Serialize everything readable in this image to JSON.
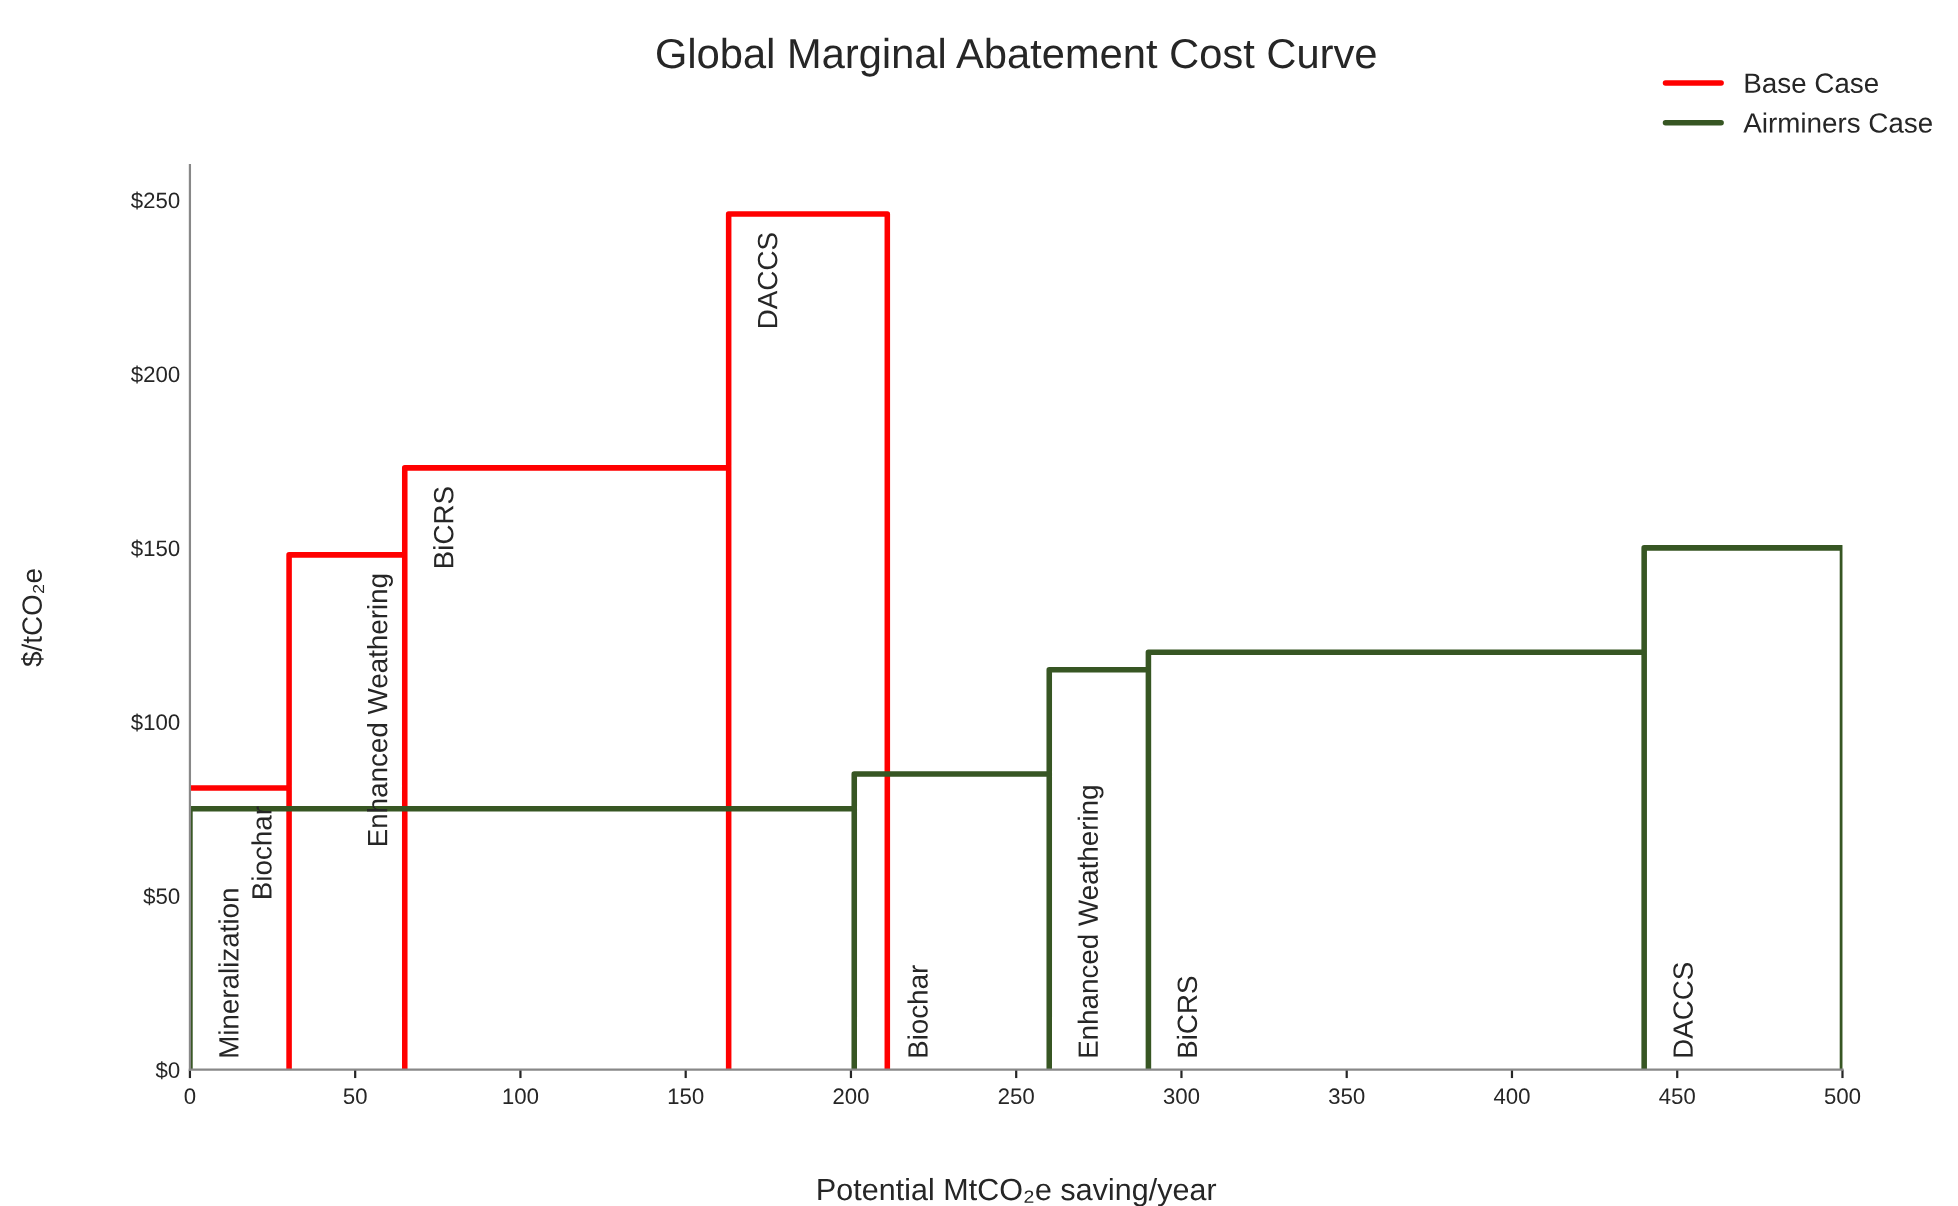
{
  "chart_data": {
    "type": "line",
    "title": "Global Marginal Abatement Cost Curve",
    "xlabel": "Potential MtCO₂e saving/year",
    "ylabel": "$/tCO₂e",
    "series": [
      {
        "name": "Base Case",
        "color": "#ff0000",
        "x": [
          0,
          30,
          30,
          30,
          65,
          65,
          65,
          163,
          163,
          163,
          211,
          211
        ],
        "values": [
          81,
          81,
          0,
          148,
          148,
          0,
          173,
          173,
          0,
          246,
          246,
          0
        ]
      },
      {
        "name": "Airminers Case",
        "color": "#375623",
        "x": [
          0,
          0,
          201,
          201,
          201,
          260,
          260,
          260,
          290,
          290,
          290,
          440,
          440,
          440,
          500,
          500
        ],
        "values": [
          0,
          75,
          75,
          0,
          85,
          85,
          0,
          115,
          115,
          0,
          120,
          120,
          0,
          150,
          150,
          0
        ]
      }
    ],
    "annotations": [
      "Biochar",
      "Enhanced Weathering",
      "BiCRS",
      "DACCS",
      "Mineralization",
      "Biochar",
      "Enhanced Weathering",
      "BiCRS",
      "DACCS"
    ],
    "xlim": [
      0,
      500
    ],
    "xticks": [
      0,
      50,
      100,
      150,
      200,
      250,
      300,
      350,
      400,
      450,
      500
    ],
    "ylim": [
      0,
      260
    ],
    "yticks": [
      {
        "value": 0,
        "label": "$0"
      },
      {
        "value": 50,
        "label": "$50"
      },
      {
        "value": 100,
        "label": "$100"
      },
      {
        "value": 150,
        "label": "$150"
      },
      {
        "value": 200,
        "label": "$200"
      },
      {
        "value": 250,
        "label": "$250"
      }
    ],
    "legend": "top right",
    "grid": false
  }
}
